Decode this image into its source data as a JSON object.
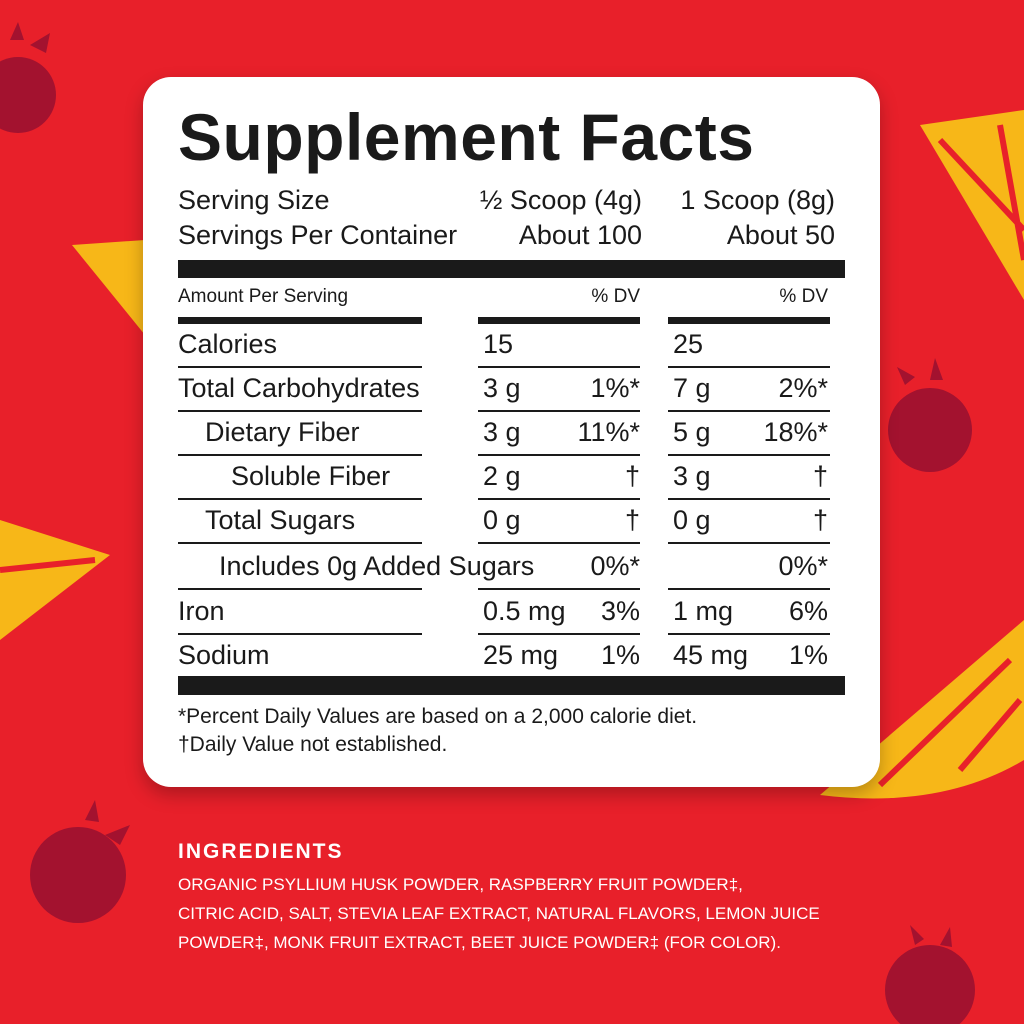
{
  "colors": {
    "background": "#e8202a",
    "raspberry": "#a3122f",
    "lemon": "#f7b718",
    "card": "#ffffff"
  },
  "facts": {
    "title": "Supplement Facts",
    "serving_size_label": "Serving Size",
    "serving_size_1": "½ Scoop (4g)",
    "serving_size_2": "1 Scoop (8g)",
    "servings_label": "Servings Per Container",
    "servings_1": "About 100",
    "servings_2": "About 50",
    "amount_label": "Amount Per Serving",
    "dv_1": "% DV",
    "dv_2": "% DV",
    "rows": [
      {
        "name": "Calories",
        "a1": "15",
        "d1": "",
        "a2": "25",
        "d2": ""
      },
      {
        "name": "Total Carbohydrates",
        "a1": "3 g",
        "d1": "1%*",
        "a2": "7 g",
        "d2": "2%*"
      },
      {
        "name": "Dietary Fiber",
        "a1": "3 g",
        "d1": "11%*",
        "a2": "5 g",
        "d2": "18%*"
      },
      {
        "name": "Soluble Fiber",
        "a1": "2 g",
        "d1": "†",
        "a2": "3 g",
        "d2": "†"
      },
      {
        "name": "Total Sugars",
        "a1": "0 g",
        "d1": "†",
        "a2": "0 g",
        "d2": "†"
      },
      {
        "name": "Includes 0g Added Sugars",
        "a1": "",
        "d1": "0%*",
        "a2": "",
        "d2": "0%*"
      },
      {
        "name": "Iron",
        "a1": "0.5 mg",
        "d1": "3%",
        "a2": "1 mg",
        "d2": "6%"
      },
      {
        "name": "Sodium",
        "a1": "25 mg",
        "d1": "1%",
        "a2": "45 mg",
        "d2": "1%"
      }
    ],
    "footnote_1": "*Percent Daily Values are based on a 2,000 calorie diet.",
    "footnote_2": "†Daily Value not established."
  },
  "ingredients": {
    "heading": "INGREDIENTS",
    "lines": [
      "ORGANIC PSYLLIUM HUSK POWDER, RASPBERRY FRUIT POWDER‡,",
      "CITRIC ACID, SALT, STEVIA LEAF EXTRACT, NATURAL FLAVORS, LEMON JUICE",
      "POWDER‡, MONK FRUIT EXTRACT, BEET JUICE POWDER‡ (FOR COLOR)."
    ]
  }
}
